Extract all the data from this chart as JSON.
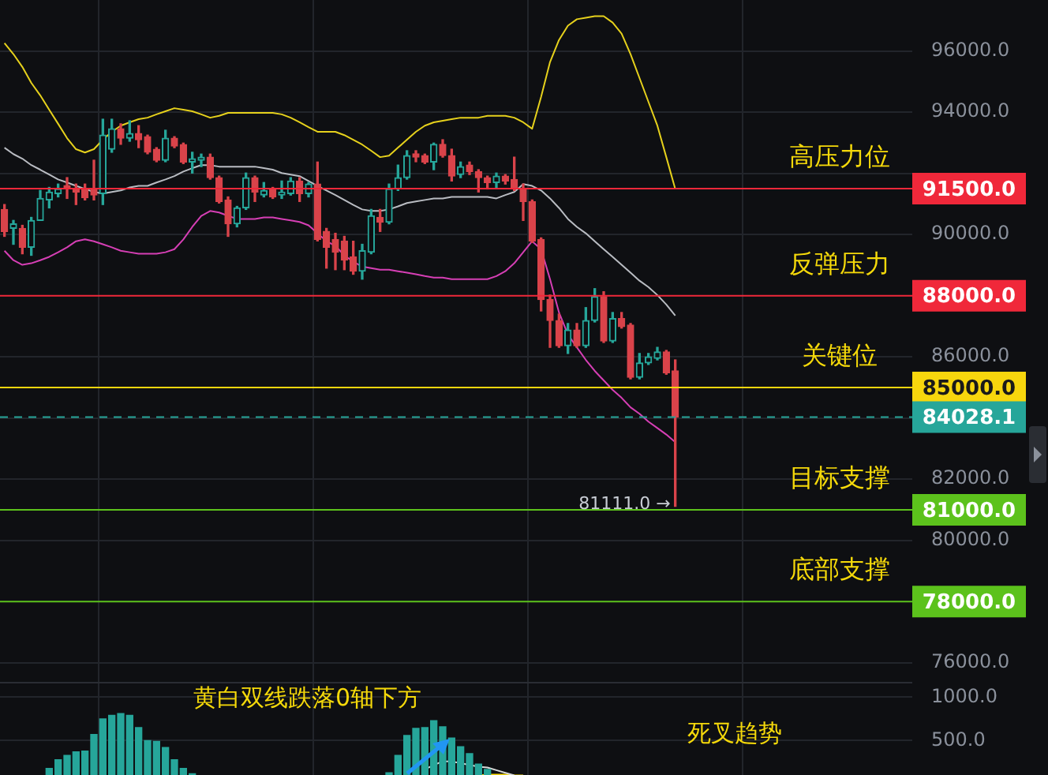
{
  "chart_data": [
    {
      "type": "candlestick",
      "categories": [
        null,
        null,
        null,
        null,
        null,
        null,
        null,
        null,
        null,
        null,
        null,
        null,
        null,
        null,
        null,
        null,
        null,
        null,
        null,
        null,
        null,
        null,
        null,
        null,
        null,
        null,
        null,
        null,
        null,
        null,
        null,
        null,
        null,
        null,
        null,
        null,
        null,
        null,
        null,
        null,
        null,
        null,
        null,
        null,
        null,
        null,
        null,
        null,
        null,
        null,
        null,
        null,
        null,
        null,
        null,
        null,
        null,
        null,
        null,
        null,
        null,
        null,
        null,
        null,
        null,
        null,
        null,
        null,
        null,
        null,
        null,
        null,
        null,
        null,
        null,
        null,
        null,
        null,
        null,
        null,
        null,
        null,
        null,
        null,
        null,
        null,
        null,
        null,
        null,
        null,
        null,
        null,
        null,
        null,
        null,
        null,
        null,
        null,
        null,
        null,
        null,
        null
      ],
      "ohlc": [
        [
          90820,
          90980,
          89940,
          90100
        ],
        [
          90200,
          90460,
          89680,
          90350
        ],
        [
          90200,
          90300,
          89370,
          89580
        ],
        [
          89580,
          90560,
          89320,
          90460
        ],
        [
          90460,
          91440,
          90460,
          91180
        ],
        [
          91130,
          91540,
          90870,
          91390
        ],
        [
          91340,
          91650,
          91230,
          91490
        ],
        [
          91600,
          91860,
          91180,
          91490
        ],
        [
          91490,
          91650,
          90980,
          91390
        ],
        [
          91500,
          91650,
          91130,
          91200
        ],
        [
          91500,
          92430,
          91130,
          91290
        ],
        [
          91340,
          93770,
          90980,
          93250
        ],
        [
          92790,
          93770,
          92690,
          93460
        ],
        [
          93460,
          93620,
          92950,
          93150
        ],
        [
          93150,
          93720,
          93050,
          93300
        ],
        [
          93300,
          93560,
          92840,
          93100
        ],
        [
          93200,
          93250,
          92640,
          92690
        ],
        [
          92790,
          92840,
          92380,
          92430
        ],
        [
          92430,
          93410,
          92380,
          93150
        ],
        [
          93150,
          93200,
          92840,
          92890
        ],
        [
          92940,
          92990,
          92320,
          92370
        ],
        [
          92370,
          92690,
          92010,
          92480
        ],
        [
          92430,
          92630,
          92220,
          92530
        ],
        [
          92530,
          92630,
          91810,
          91860
        ],
        [
          91860,
          91910,
          91030,
          91080
        ],
        [
          91130,
          91230,
          89940,
          90350
        ],
        [
          90350,
          90920,
          90250,
          90870
        ],
        [
          90870,
          92010,
          90820,
          91860
        ],
        [
          91860,
          91910,
          91080,
          91390
        ],
        [
          91290,
          91700,
          91230,
          91440
        ],
        [
          91490,
          91540,
          91180,
          91230
        ],
        [
          91290,
          91750,
          91180,
          91390
        ],
        [
          91340,
          91860,
          91290,
          91750
        ],
        [
          91750,
          91860,
          91080,
          91340
        ],
        [
          91340,
          91700,
          91230,
          91650
        ],
        [
          91650,
          92370,
          89790,
          89840
        ],
        [
          90100,
          90200,
          88900,
          89580
        ],
        [
          89840,
          90040,
          88850,
          89420
        ],
        [
          89790,
          89940,
          88850,
          89160
        ],
        [
          89270,
          89780,
          88700,
          88800
        ],
        [
          88800,
          89680,
          88540,
          89470
        ],
        [
          89420,
          90820,
          89370,
          90610
        ],
        [
          90560,
          90820,
          90100,
          90400
        ],
        [
          90400,
          91650,
          90350,
          91490
        ],
        [
          91490,
          92270,
          91440,
          91860
        ],
        [
          91860,
          92740,
          91810,
          92580
        ],
        [
          92640,
          92740,
          92380,
          92530
        ],
        [
          92580,
          92630,
          92320,
          92370
        ],
        [
          92370,
          92990,
          92120,
          92950
        ],
        [
          92950,
          93100,
          92530,
          92580
        ],
        [
          92580,
          92790,
          91750,
          91910
        ],
        [
          91960,
          92370,
          91860,
          92220
        ],
        [
          92270,
          92370,
          91960,
          92060
        ],
        [
          92060,
          92120,
          91390,
          91860
        ],
        [
          91860,
          91910,
          91490,
          91700
        ],
        [
          91700,
          92010,
          91540,
          91910
        ],
        [
          91910,
          91960,
          91650,
          91750
        ],
        [
          91800,
          92530,
          91440,
          91490
        ],
        [
          91490,
          91650,
          90460,
          91080
        ],
        [
          91080,
          91130,
          89740,
          89790
        ],
        [
          89840,
          89890,
          87500,
          87870
        ],
        [
          87870,
          88020,
          86310,
          87190
        ],
        [
          87190,
          87400,
          86310,
          86360
        ],
        [
          86360,
          87090,
          86110,
          86880
        ],
        [
          86880,
          87090,
          86310,
          86360
        ],
        [
          86360,
          87610,
          86310,
          87190
        ],
        [
          87190,
          88230,
          87140,
          87970
        ],
        [
          87970,
          88130,
          86470,
          86520
        ],
        [
          86520,
          87450,
          86470,
          87250
        ],
        [
          87250,
          87450,
          86940,
          86990
        ],
        [
          87040,
          87090,
          85280,
          85330
        ],
        [
          85330,
          86110,
          85280,
          85800
        ],
        [
          85800,
          86110,
          85750,
          86000
        ],
        [
          85950,
          86310,
          85900,
          86160
        ],
        [
          86160,
          86210,
          85430,
          85480
        ],
        [
          85540,
          85900,
          81111,
          84028.1
        ],
        null,
        null,
        null,
        null,
        null,
        null,
        null,
        null,
        null,
        null,
        null,
        null,
        null,
        null,
        null,
        null,
        null,
        null,
        null,
        null,
        null,
        null,
        null,
        null,
        null,
        null
      ],
      "series": [
        {
          "type": "line",
          "color": "#e6d11c",
          "values": [
            96260,
            95900,
            95480,
            94960,
            94550,
            94080,
            93620,
            93150,
            92790,
            92680,
            92790,
            93100,
            93360,
            93560,
            93670,
            93770,
            93820,
            93930,
            94030,
            94130,
            94080,
            94030,
            93930,
            93820,
            93880,
            93980,
            93980,
            93980,
            93980,
            93980,
            93980,
            93930,
            93820,
            93670,
            93510,
            93360,
            93360,
            93360,
            93250,
            93100,
            92940,
            92740,
            92530,
            92580,
            92840,
            93100,
            93360,
            93560,
            93670,
            93720,
            93770,
            93820,
            93820,
            93820,
            93880,
            93880,
            93880,
            93820,
            93670,
            93460,
            94500,
            95640,
            96360,
            96830,
            97040,
            97090,
            97140,
            97140,
            96930,
            96570,
            95900,
            95120,
            94340,
            93560,
            92530,
            91490,
            null,
            null,
            null,
            null,
            null,
            null,
            null,
            null,
            null,
            null,
            null,
            null,
            null,
            null,
            null,
            null,
            null,
            null,
            null,
            null,
            null,
            null,
            null,
            null,
            null,
            null
          ]
        },
        {
          "type": "line",
          "color": "#b9bcc2",
          "values": [
            92840,
            92630,
            92480,
            92270,
            92120,
            91960,
            91800,
            91700,
            91590,
            91490,
            91390,
            91340,
            91390,
            91440,
            91540,
            91590,
            91590,
            91700,
            91800,
            91910,
            92060,
            92170,
            92270,
            92270,
            92220,
            92220,
            92220,
            92220,
            92220,
            92170,
            92120,
            92010,
            91960,
            91910,
            91750,
            91590,
            91440,
            91290,
            91130,
            90970,
            90820,
            90770,
            90770,
            90820,
            90920,
            91030,
            91080,
            91130,
            91180,
            91180,
            91230,
            91230,
            91230,
            91230,
            91230,
            91180,
            91290,
            91390,
            91650,
            91590,
            91440,
            91180,
            90870,
            90510,
            90250,
            90040,
            89780,
            89520,
            89270,
            89010,
            88750,
            88490,
            88280,
            88020,
            87710,
            87350,
            null,
            null,
            null,
            null,
            null,
            null,
            null,
            null,
            null,
            null,
            null,
            null,
            null,
            null,
            null,
            null,
            null,
            null,
            null,
            null,
            null,
            null,
            null,
            null,
            null,
            null
          ]
        },
        {
          "type": "line",
          "color": "#d63fb5",
          "values": [
            89470,
            89160,
            89010,
            89060,
            89160,
            89270,
            89420,
            89580,
            89780,
            89840,
            89780,
            89680,
            89580,
            89470,
            89420,
            89370,
            89370,
            89370,
            89420,
            89520,
            89840,
            90250,
            90610,
            90770,
            90720,
            90610,
            90510,
            90510,
            90510,
            90560,
            90560,
            90510,
            90460,
            90410,
            90300,
            90040,
            89780,
            89630,
            89320,
            89110,
            88950,
            88900,
            88850,
            88850,
            88800,
            88750,
            88700,
            88640,
            88590,
            88590,
            88540,
            88540,
            88540,
            88540,
            88540,
            88640,
            88800,
            89060,
            89420,
            89780,
            89520,
            88540,
            87450,
            86730,
            86310,
            85900,
            85540,
            85230,
            84920,
            84660,
            84350,
            84140,
            83880,
            83670,
            83460,
            83210,
            null,
            null,
            null,
            null,
            null,
            null,
            null,
            null,
            null,
            null,
            null,
            null,
            null,
            null,
            null,
            null,
            null,
            null,
            null,
            null,
            null,
            null,
            null,
            null,
            null,
            null
          ]
        }
      ],
      "ylim": [
        75330,
        97710
      ],
      "yticks": [
        {
          "value": 76000,
          "label": "76000.0"
        },
        {
          "value": 80000,
          "label": "80000.0"
        },
        {
          "value": 82000,
          "label": "82000.0"
        },
        {
          "value": 84000,
          "label": null
        },
        {
          "value": 86000,
          "label": "86000.0"
        },
        {
          "value": 90000,
          "label": "90000.0"
        },
        {
          "value": 92000,
          "label": null
        },
        {
          "value": 94000,
          "label": "94000.0"
        },
        {
          "value": 96000,
          "label": "96000.0"
        }
      ],
      "ref_lines": [
        {
          "axis": "y",
          "value": 91500,
          "label": "91500.0",
          "color": "#f0283a"
        },
        {
          "axis": "y",
          "value": 88000,
          "label": "88000.0",
          "color": "#f0283a"
        },
        {
          "axis": "y",
          "value": 85000,
          "label": "85000.0",
          "color": "#f7d60d"
        },
        {
          "axis": "y",
          "value": 84028.1,
          "label": "84028.1",
          "color": "#26a69a",
          "line_style": "dashed"
        },
        {
          "axis": "y",
          "value": 81000,
          "label": "81000.0",
          "color": "#5cc21c"
        },
        {
          "axis": "y",
          "value": 78000,
          "label": "78000.0",
          "color": "#5cc21c"
        }
      ],
      "annotations": [
        "81111.0 →",
        {
          "text": "高压力位",
          "y": 91500
        },
        {
          "text": "反弹压力",
          "y": 88000
        },
        {
          "text": "关键位",
          "y": 85000
        },
        {
          "text": "目标支撑",
          "y": 81000
        },
        {
          "text": "底部支撑",
          "y": 78000
        }
      ],
      "grid": true,
      "legend": false,
      "tick_labels": "y"
    },
    {
      "type": "bar",
      "categories": [
        null,
        null,
        null,
        null,
        null,
        null,
        null,
        null,
        null,
        null,
        null,
        null,
        null,
        null,
        null,
        null,
        null,
        null,
        null,
        null,
        null,
        null,
        null,
        null,
        null,
        null,
        null,
        null,
        null,
        null,
        null,
        null,
        null,
        null,
        null,
        null,
        null,
        null,
        null,
        null,
        null,
        null,
        null,
        null,
        null,
        null,
        null,
        null,
        null,
        null,
        null,
        null,
        null,
        null,
        null,
        null,
        null,
        null,
        null,
        null,
        null,
        null,
        null,
        null,
        null,
        null,
        null,
        null,
        null,
        null,
        null,
        null,
        null,
        null,
        null,
        null,
        null,
        null,
        null,
        null,
        null,
        null,
        null,
        null,
        null,
        null,
        null,
        null,
        null,
        null,
        null,
        null,
        null,
        null,
        null,
        null,
        null,
        null,
        null,
        null,
        null,
        null
      ],
      "series": [
        {
          "color": "#26a69a",
          "values": [
            null,
            null,
            null,
            null,
            null,
            180,
            280,
            330,
            370,
            380,
            570,
            750,
            790,
            810,
            790,
            650,
            500,
            490,
            420,
            280,
            180,
            120,
            null,
            null,
            null,
            null,
            null,
            null,
            null,
            null,
            null,
            null,
            null,
            null,
            null,
            null,
            null,
            null,
            null,
            null,
            null,
            null,
            null,
            130,
            330,
            560,
            640,
            650,
            730,
            660,
            530,
            430,
            350,
            230,
            170,
            null,
            null,
            null,
            null,
            null,
            null,
            null,
            null,
            null,
            null,
            null,
            null,
            null,
            null,
            null,
            null,
            null,
            null,
            null,
            null,
            null,
            null,
            null,
            null,
            null,
            null,
            null,
            null,
            null,
            null,
            null,
            null,
            null,
            null,
            null,
            null,
            null,
            null,
            null,
            null,
            null,
            null,
            null,
            null,
            null,
            null,
            null
          ]
        },
        {
          "type": "line",
          "color": "#d9d9d9",
          "values": [
            null,
            null,
            null,
            null,
            null,
            null,
            null,
            null,
            null,
            null,
            null,
            null,
            null,
            null,
            null,
            null,
            null,
            null,
            null,
            null,
            null,
            null,
            null,
            null,
            null,
            null,
            null,
            null,
            null,
            null,
            null,
            null,
            null,
            null,
            null,
            null,
            null,
            null,
            null,
            null,
            null,
            null,
            null,
            null,
            null,
            null,
            null,
            170,
            220,
            260,
            260,
            240,
            220,
            200,
            190,
            160,
            130,
            100,
            null,
            null,
            null,
            null,
            null,
            null,
            null,
            null,
            null,
            null,
            null,
            null,
            null,
            null,
            null,
            null,
            null,
            null,
            null,
            null,
            null,
            null,
            null,
            null,
            null,
            null,
            null,
            null,
            null,
            null,
            null,
            null,
            null,
            null,
            null,
            null,
            null,
            null,
            null,
            null,
            null,
            null,
            null,
            null
          ]
        },
        {
          "type": "line",
          "color": "#f5d90a",
          "values": [
            null,
            null,
            null,
            null,
            null,
            null,
            null,
            null,
            null,
            null,
            null,
            null,
            null,
            null,
            null,
            null,
            null,
            null,
            null,
            null,
            null,
            null,
            null,
            null,
            null,
            null,
            null,
            null,
            null,
            null,
            null,
            null,
            null,
            null,
            null,
            null,
            null,
            null,
            null,
            null,
            null,
            null,
            null,
            null,
            null,
            null,
            null,
            null,
            null,
            null,
            null,
            null,
            null,
            100,
            110,
            110,
            110,
            100,
            100,
            null,
            null,
            null,
            null,
            null,
            null,
            null,
            null,
            null,
            null,
            null,
            null,
            null,
            null,
            null,
            null,
            null,
            null,
            null,
            null,
            null,
            null,
            null,
            null,
            null,
            null,
            null,
            null,
            null,
            null,
            null,
            null,
            null,
            null,
            null,
            null,
            null,
            null,
            null,
            null,
            null,
            null,
            null
          ]
        }
      ],
      "ylim": [
        90,
        1190
      ],
      "yticks": [
        {
          "value": 500,
          "label": "500.0"
        },
        {
          "value": 1000,
          "label": "1000.0"
        }
      ],
      "annotations": [
        "黄白双线跌落0轴下方",
        "死叉趋势"
      ],
      "grid": true,
      "legend": false,
      "tick_labels": "y"
    }
  ]
}
